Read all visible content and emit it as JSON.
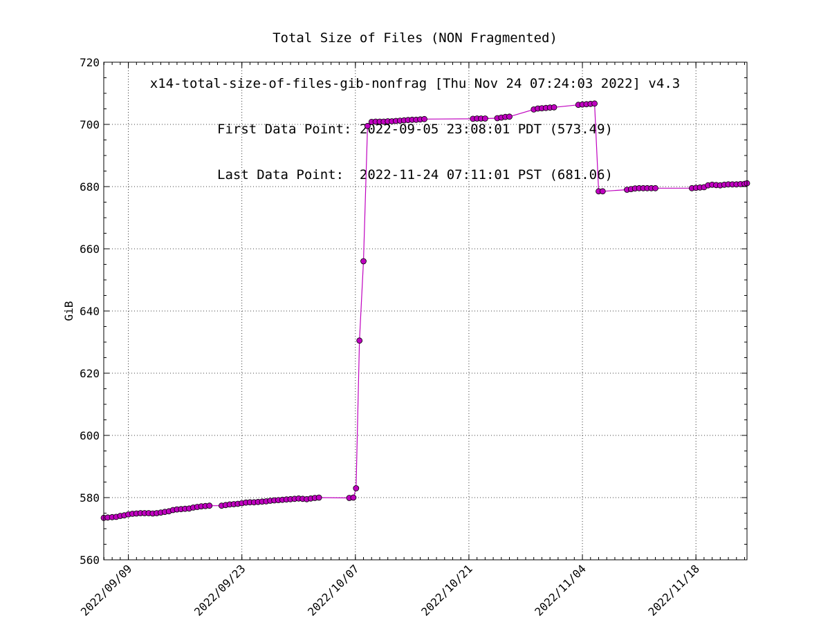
{
  "chart_data": {
    "type": "line",
    "title": "Total Size of Files (NON Fragmented)",
    "subtitle": "x14-total-size-of-files-gib-nonfrag [Thu Nov 24 07:24:03 2022] v4.3",
    "first_point_text": "First Data Point: 2022-09-05 23:08:01 PDT (573.49)",
    "last_point_text": "Last Data Point:  2022-11-24 07:11:01 PST (681.06)",
    "xlabel": "",
    "ylabel": "GiB",
    "ylim": [
      560,
      720
    ],
    "xlim": [
      "2022-09-05T23:08",
      "2022-11-24T07:11"
    ],
    "yticks": [
      "560",
      "580",
      "600",
      "620",
      "640",
      "660",
      "680",
      "700",
      "720"
    ],
    "xticks": [
      "2022/09/09",
      "2022/09/23",
      "2022/10/07",
      "2022/10/21",
      "2022/11/04",
      "2022/11/18"
    ],
    "grid": true,
    "marker_color": "#bf00bf",
    "line_color": "#bf00bf",
    "series": [
      {
        "x": [
          "2022-09-05T23:08",
          "2022-09-06T11:00",
          "2022-09-07T00:00",
          "2022-09-07T12:00",
          "2022-09-08T00:00",
          "2022-09-08T12:00",
          "2022-09-09T00:00",
          "2022-09-09T12:00",
          "2022-09-10T00:00",
          "2022-09-10T12:00",
          "2022-09-11T00:00",
          "2022-09-11T12:00",
          "2022-09-12T00:00",
          "2022-09-12T12:00",
          "2022-09-13T00:00",
          "2022-09-13T12:00",
          "2022-09-14T00:00",
          "2022-09-14T12:00",
          "2022-09-15T00:00",
          "2022-09-15T12:00",
          "2022-09-16T00:00",
          "2022-09-16T12:00",
          "2022-09-17T00:00",
          "2022-09-17T12:00",
          "2022-09-18T00:00",
          "2022-09-18T12:00",
          "2022-09-19T00:00",
          "2022-09-20T12:00",
          "2022-09-21T00:00",
          "2022-09-21T12:00",
          "2022-09-22T00:00",
          "2022-09-22T12:00",
          "2022-09-23T00:00",
          "2022-09-23T12:00",
          "2022-09-24T00:00",
          "2022-09-24T12:00",
          "2022-09-25T00:00",
          "2022-09-25T12:00",
          "2022-09-26T00:00",
          "2022-09-26T12:00",
          "2022-09-27T00:00",
          "2022-09-27T12:00",
          "2022-09-28T00:00",
          "2022-09-28T12:00",
          "2022-09-29T00:00",
          "2022-09-29T12:00",
          "2022-09-30T00:00",
          "2022-09-30T12:00",
          "2022-10-01T00:00",
          "2022-10-01T12:00",
          "2022-10-02T00:00",
          "2022-10-02T12:00",
          "2022-10-06T06:00",
          "2022-10-06T18:00",
          "2022-10-07T02:00",
          "2022-10-07T12:00",
          "2022-10-08T00:00",
          "2022-10-08T12:00",
          "2022-10-09T00:00",
          "2022-10-09T12:00",
          "2022-10-10T00:00",
          "2022-10-10T12:00",
          "2022-10-11T00:00",
          "2022-10-11T12:00",
          "2022-10-12T00:00",
          "2022-10-12T12:00",
          "2022-10-13T00:00",
          "2022-10-13T12:00",
          "2022-10-14T00:00",
          "2022-10-14T12:00",
          "2022-10-15T00:00",
          "2022-10-15T12:00",
          "2022-10-21T12:00",
          "2022-10-22T00:00",
          "2022-10-22T12:00",
          "2022-10-23T00:00",
          "2022-10-24T12:00",
          "2022-10-25T00:00",
          "2022-10-25T12:00",
          "2022-10-26T00:00",
          "2022-10-29T00:00",
          "2022-10-29T12:00",
          "2022-10-30T00:00",
          "2022-10-30T12:00",
          "2022-10-31T00:00",
          "2022-10-31T12:00",
          "2022-11-03T12:00",
          "2022-11-04T00:00",
          "2022-11-04T12:00",
          "2022-11-05T00:00",
          "2022-11-05T12:00",
          "2022-11-06T00:00",
          "2022-11-06T12:00",
          "2022-11-09T12:00",
          "2022-11-10T00:00",
          "2022-11-10T12:00",
          "2022-11-11T00:00",
          "2022-11-11T12:00",
          "2022-11-12T00:00",
          "2022-11-12T12:00",
          "2022-11-13T00:00",
          "2022-11-17T12:00",
          "2022-11-18T00:00",
          "2022-11-18T12:00",
          "2022-11-19T00:00",
          "2022-11-19T12:00",
          "2022-11-20T00:00",
          "2022-11-20T12:00",
          "2022-11-21T00:00",
          "2022-11-21T12:00",
          "2022-11-22T00:00",
          "2022-11-22T12:00",
          "2022-11-23T00:00",
          "2022-11-23T12:00",
          "2022-11-24T00:00",
          "2022-11-24T07:11"
        ],
        "y": [
          573.49,
          573.6,
          573.7,
          573.8,
          574.1,
          574.3,
          574.6,
          574.8,
          574.9,
          575.0,
          575.0,
          575.0,
          574.9,
          575.0,
          575.2,
          575.4,
          575.6,
          576.0,
          576.2,
          576.3,
          576.4,
          576.5,
          576.8,
          577.0,
          577.2,
          577.3,
          577.4,
          577.4,
          577.6,
          577.8,
          577.9,
          578.0,
          578.2,
          578.4,
          578.5,
          578.5,
          578.6,
          578.7,
          578.8,
          579.0,
          579.1,
          579.2,
          579.3,
          579.4,
          579.5,
          579.6,
          579.7,
          579.6,
          579.5,
          579.7,
          579.9,
          580.0,
          579.9,
          580.0,
          583.0,
          630.5,
          656.0,
          699.5,
          700.8,
          700.9,
          700.9,
          700.9,
          701.0,
          701.0,
          701.1,
          701.2,
          701.3,
          701.4,
          701.5,
          701.5,
          701.6,
          701.7,
          701.8,
          701.9,
          701.9,
          701.9,
          702.0,
          702.2,
          702.4,
          702.5,
          704.8,
          705.1,
          705.2,
          705.3,
          705.4,
          705.5,
          706.3,
          706.4,
          706.5,
          706.6,
          706.7,
          678.5,
          678.5,
          679.0,
          679.2,
          679.4,
          679.5,
          679.5,
          679.5,
          679.5,
          679.5,
          679.5,
          679.6,
          679.7,
          679.8,
          680.4,
          680.6,
          680.5,
          680.4,
          680.6,
          680.7,
          680.7,
          680.7,
          680.8,
          680.9,
          681.06
        ]
      }
    ]
  }
}
